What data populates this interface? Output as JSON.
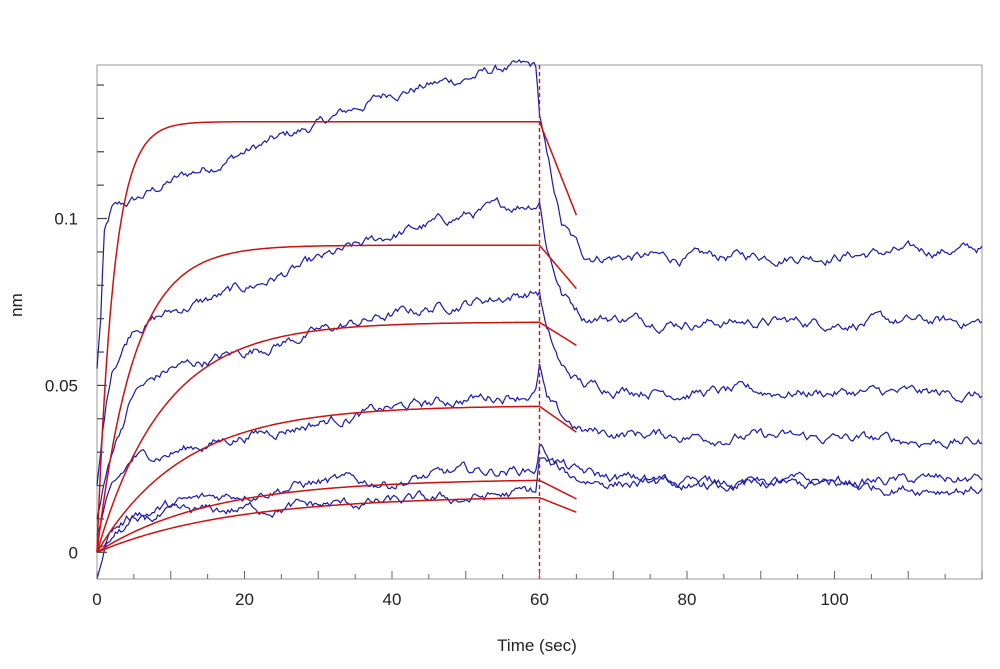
{
  "chart_data": {
    "type": "line",
    "title": "",
    "xlabel": "Time (sec)",
    "ylabel": "nm",
    "xlim": [
      0,
      120
    ],
    "ylim": [
      -0.008,
      0.146
    ],
    "x_ticks": [
      0,
      20,
      40,
      60,
      80,
      100
    ],
    "x_tick_labels": [
      "0",
      "20",
      "40",
      "60",
      "80",
      "100"
    ],
    "y_ticks": [
      0,
      0.05,
      0.1
    ],
    "y_tick_labels": [
      "0",
      "0.05",
      "0.1"
    ],
    "grid": false,
    "legend": "none",
    "injection_marker_x": 60,
    "colors": {
      "measured": "#1a1aaa",
      "fit": "#cc1111",
      "marker": "#cc1111",
      "frame": "#999999"
    },
    "measured_series": [
      {
        "start": 0.055,
        "association_end": 0.145,
        "peak": 0.131,
        "dissociation_plateau": 0.089,
        "end": 0.091,
        "trend": [
          [
            0,
            0.055
          ],
          [
            0.5,
            0.07
          ],
          [
            1,
            0.095
          ],
          [
            2,
            0.102
          ],
          [
            5,
            0.105
          ],
          [
            10,
            0.111
          ],
          [
            20,
            0.12
          ],
          [
            30,
            0.128
          ],
          [
            40,
            0.138
          ],
          [
            50,
            0.142
          ],
          [
            55,
            0.145
          ],
          [
            59.5,
            0.145
          ],
          [
            60,
            0.131
          ],
          [
            61,
            0.118
          ],
          [
            63,
            0.098
          ],
          [
            66,
            0.089
          ],
          [
            80,
            0.088
          ],
          [
            90,
            0.089
          ],
          [
            100,
            0.089
          ],
          [
            110,
            0.09
          ],
          [
            120,
            0.091
          ]
        ]
      },
      {
        "start": 0.02,
        "association_end": 0.105,
        "peak": 0.106,
        "dissociation_plateau": 0.068,
        "end": 0.069,
        "trend": [
          [
            0,
            0.02
          ],
          [
            1,
            0.04
          ],
          [
            2,
            0.055
          ],
          [
            5,
            0.068
          ],
          [
            10,
            0.072
          ],
          [
            20,
            0.079
          ],
          [
            30,
            0.087
          ],
          [
            40,
            0.095
          ],
          [
            50,
            0.101
          ],
          [
            59.5,
            0.105
          ],
          [
            60,
            0.106
          ],
          [
            61,
            0.092
          ],
          [
            63,
            0.078
          ],
          [
            66,
            0.071
          ],
          [
            80,
            0.069
          ],
          [
            100,
            0.069
          ],
          [
            120,
            0.069
          ]
        ]
      },
      {
        "start": 0.01,
        "association_end": 0.078,
        "peak": 0.078,
        "dissociation_plateau": 0.048,
        "end": 0.047,
        "trend": [
          [
            0,
            0.01
          ],
          [
            1,
            0.02
          ],
          [
            2,
            0.03
          ],
          [
            5,
            0.048
          ],
          [
            10,
            0.055
          ],
          [
            20,
            0.06
          ],
          [
            30,
            0.066
          ],
          [
            40,
            0.071
          ],
          [
            50,
            0.075
          ],
          [
            59.5,
            0.078
          ],
          [
            60,
            0.078
          ],
          [
            61,
            0.066
          ],
          [
            63,
            0.055
          ],
          [
            66,
            0.05
          ],
          [
            80,
            0.048
          ],
          [
            100,
            0.048
          ],
          [
            120,
            0.047
          ]
        ]
      },
      {
        "start": 0.005,
        "association_end": 0.048,
        "peak": 0.056,
        "dissociation_plateau": 0.035,
        "end": 0.033,
        "trend": [
          [
            0,
            0.005
          ],
          [
            1,
            0.012
          ],
          [
            2,
            0.018
          ],
          [
            5,
            0.028
          ],
          [
            10,
            0.03
          ],
          [
            20,
            0.035
          ],
          [
            30,
            0.039
          ],
          [
            40,
            0.043
          ],
          [
            50,
            0.046
          ],
          [
            59.5,
            0.048
          ],
          [
            60,
            0.056
          ],
          [
            61,
            0.045
          ],
          [
            63,
            0.04
          ],
          [
            66,
            0.036
          ],
          [
            80,
            0.035
          ],
          [
            100,
            0.034
          ],
          [
            120,
            0.033
          ]
        ]
      },
      {
        "start": 0.0,
        "association_end": 0.025,
        "peak": 0.032,
        "dissociation_plateau": 0.021,
        "end": 0.022,
        "trend": [
          [
            0,
            0.0
          ],
          [
            2,
            0.007
          ],
          [
            5,
            0.011
          ],
          [
            10,
            0.014
          ],
          [
            20,
            0.018
          ],
          [
            30,
            0.021
          ],
          [
            40,
            0.021
          ],
          [
            50,
            0.024
          ],
          [
            59.5,
            0.025
          ],
          [
            60,
            0.032
          ],
          [
            62,
            0.028
          ],
          [
            65,
            0.024
          ],
          [
            70,
            0.022
          ],
          [
            80,
            0.021
          ],
          [
            100,
            0.021
          ],
          [
            120,
            0.022
          ]
        ]
      },
      {
        "start": -0.008,
        "association_end": 0.018,
        "peak": 0.028,
        "dissociation_plateau": 0.02,
        "end": 0.019,
        "trend": [
          [
            0,
            -0.008
          ],
          [
            1,
            0.0
          ],
          [
            2,
            0.004
          ],
          [
            5,
            0.009
          ],
          [
            10,
            0.011
          ],
          [
            20,
            0.013
          ],
          [
            30,
            0.014
          ],
          [
            40,
            0.015
          ],
          [
            50,
            0.016
          ],
          [
            59.5,
            0.018
          ],
          [
            60,
            0.028
          ],
          [
            62,
            0.025
          ],
          [
            65,
            0.022
          ],
          [
            70,
            0.021
          ],
          [
            80,
            0.02
          ],
          [
            100,
            0.02
          ],
          [
            120,
            0.019
          ]
        ]
      }
    ],
    "fit_series": [
      {
        "plateau": 0.129,
        "rate": 0.45,
        "dissociation_end": 0.101
      },
      {
        "plateau": 0.092,
        "rate": 0.2,
        "dissociation_end": 0.079
      },
      {
        "plateau": 0.069,
        "rate": 0.11,
        "dissociation_end": 0.062
      },
      {
        "plateau": 0.044,
        "rate": 0.085,
        "dissociation_end": 0.036
      },
      {
        "plateau": 0.022,
        "rate": 0.065,
        "dissociation_end": 0.016
      },
      {
        "plateau": 0.017,
        "rate": 0.055,
        "dissociation_end": 0.012
      }
    ],
    "fit_dissociation_end_x": 65
  }
}
